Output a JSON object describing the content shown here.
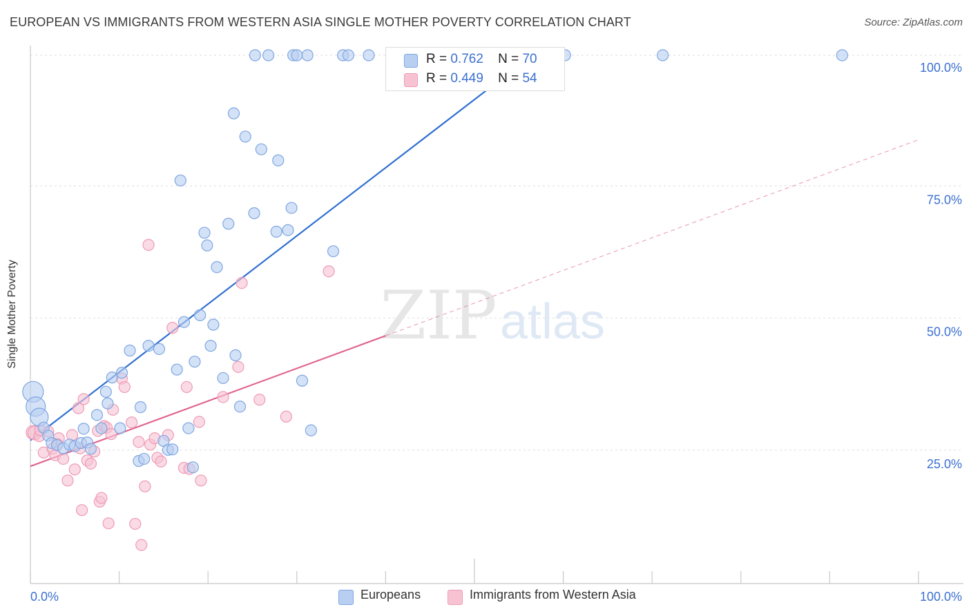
{
  "header": {
    "title": "EUROPEAN VS IMMIGRANTS FROM WESTERN ASIA SINGLE MOTHER POVERTY CORRELATION CHART",
    "source": "Source: ZipAtlas.com"
  },
  "watermark": {
    "zip": "ZIP",
    "atlas": "atlas"
  },
  "legend": {
    "rows": [
      {
        "r_label": "R =",
        "r_value": "0.762",
        "n_label": "N =",
        "n_value": "70"
      },
      {
        "r_label": "R =",
        "r_value": "0.449",
        "n_label": "N =",
        "n_value": "54"
      }
    ]
  },
  "bottom_legend": {
    "items": [
      "Europeans",
      "Immigrants from Western Asia"
    ]
  },
  "colors": {
    "europeans_fill": "#b8cff2",
    "europeans_stroke": "#7ea6e0",
    "europeans_line": "#2f6fd0",
    "immigrants_fill": "#f7c3d3",
    "immigrants_stroke": "#ee9ab4",
    "immigrants_line": "#e06690",
    "axis_text": "#3b70d0",
    "grid": "#dddddd"
  },
  "chart_data": {
    "type": "scatter",
    "title": "EUROPEAN VS IMMIGRANTS FROM WESTERN ASIA SINGLE MOTHER POVERTY CORRELATION CHART",
    "xlabel": "",
    "ylabel": "Single Mother Poverty",
    "xlim": [
      0,
      100
    ],
    "ylim": [
      0,
      100
    ],
    "x_tick_labels": [
      "0.0%",
      "100.0%"
    ],
    "y_ticks": [
      25,
      50,
      75,
      100
    ],
    "y_tick_labels": [
      "25.0%",
      "50.0%",
      "75.0%",
      "100.0%"
    ],
    "grid": true,
    "legend_position": "top-center",
    "series": [
      {
        "name": "Europeans",
        "r": 0.762,
        "n": 70,
        "trend": {
          "x": [
            0,
            56.5
          ],
          "y": [
            27.1,
            100
          ]
        },
        "points": [
          [
            0.3,
            36.3
          ],
          [
            0.6,
            33.5
          ],
          [
            1.0,
            31.5
          ],
          [
            1.5,
            29.5
          ],
          [
            2.0,
            28.0
          ],
          [
            2.4,
            26.6
          ],
          [
            3.0,
            26.2
          ],
          [
            3.7,
            25.6
          ],
          [
            4.4,
            26.3
          ],
          [
            5.0,
            26.0
          ],
          [
            5.7,
            26.6
          ],
          [
            6.0,
            29.3
          ],
          [
            6.4,
            26.7
          ],
          [
            6.8,
            25.5
          ],
          [
            7.5,
            31.9
          ],
          [
            8.0,
            29.4
          ],
          [
            8.5,
            36.3
          ],
          [
            8.7,
            34.1
          ],
          [
            9.2,
            39.0
          ],
          [
            10.1,
            29.4
          ],
          [
            10.3,
            39.9
          ],
          [
            11.2,
            44.1
          ],
          [
            12.2,
            23.2
          ],
          [
            12.4,
            33.4
          ],
          [
            12.8,
            23.6
          ],
          [
            13.3,
            45.0
          ],
          [
            14.5,
            44.4
          ],
          [
            15.0,
            27.0
          ],
          [
            15.5,
            25.3
          ],
          [
            16.0,
            25.4
          ],
          [
            16.5,
            40.5
          ],
          [
            16.9,
            76.3
          ],
          [
            17.3,
            49.5
          ],
          [
            17.8,
            29.4
          ],
          [
            18.3,
            22.0
          ],
          [
            18.5,
            42.0
          ],
          [
            19.1,
            50.8
          ],
          [
            19.6,
            66.4
          ],
          [
            19.9,
            64.0
          ],
          [
            20.3,
            45.0
          ],
          [
            20.6,
            49.0
          ],
          [
            21.0,
            59.9
          ],
          [
            21.7,
            38.9
          ],
          [
            22.3,
            68.1
          ],
          [
            22.9,
            89.0
          ],
          [
            23.1,
            43.2
          ],
          [
            23.6,
            33.5
          ],
          [
            24.2,
            84.6
          ],
          [
            25.2,
            70.1
          ],
          [
            25.3,
            100
          ],
          [
            26.0,
            82.2
          ],
          [
            26.8,
            100
          ],
          [
            27.7,
            66.6
          ],
          [
            27.9,
            80.1
          ],
          [
            29.0,
            66.9
          ],
          [
            29.4,
            71.1
          ],
          [
            29.6,
            100
          ],
          [
            30.0,
            100
          ],
          [
            30.6,
            38.4
          ],
          [
            31.2,
            100
          ],
          [
            31.6,
            29.0
          ],
          [
            34.1,
            62.9
          ],
          [
            35.2,
            100
          ],
          [
            35.8,
            100
          ],
          [
            38.1,
            100
          ],
          [
            42.1,
            100
          ],
          [
            43.2,
            100
          ],
          [
            60.2,
            100
          ],
          [
            71.2,
            100
          ],
          [
            91.4,
            100
          ]
        ]
      },
      {
        "name": "Immigrants from Western Asia",
        "r": 0.449,
        "n": 54,
        "trend": {
          "x": [
            0,
            40
          ],
          "y": [
            22.2,
            46.9
          ]
        },
        "trend_extension": {
          "x": [
            40,
            100
          ],
          "y": [
            46.9,
            84.0
          ]
        },
        "points": [
          [
            0.3,
            28.6
          ],
          [
            0.5,
            28.5
          ],
          [
            1.0,
            27.9
          ],
          [
            1.5,
            24.8
          ],
          [
            2.0,
            28.8
          ],
          [
            2.5,
            25.5
          ],
          [
            2.8,
            24.3
          ],
          [
            3.2,
            27.5
          ],
          [
            3.7,
            23.6
          ],
          [
            4.2,
            19.5
          ],
          [
            4.7,
            28.1
          ],
          [
            5.0,
            21.6
          ],
          [
            5.4,
            33.2
          ],
          [
            5.6,
            25.6
          ],
          [
            5.8,
            13.9
          ],
          [
            6.0,
            34.9
          ],
          [
            6.4,
            23.3
          ],
          [
            6.8,
            22.7
          ],
          [
            7.2,
            25.0
          ],
          [
            7.6,
            28.9
          ],
          [
            7.8,
            15.5
          ],
          [
            8.0,
            16.2
          ],
          [
            8.3,
            29.8
          ],
          [
            8.6,
            29.5
          ],
          [
            8.8,
            11.4
          ],
          [
            9.1,
            28.3
          ],
          [
            9.3,
            32.9
          ],
          [
            10.3,
            38.8
          ],
          [
            10.6,
            37.2
          ],
          [
            11.4,
            30.5
          ],
          [
            11.8,
            11.3
          ],
          [
            12.2,
            26.8
          ],
          [
            12.5,
            7.3
          ],
          [
            12.9,
            18.4
          ],
          [
            13.3,
            64.1
          ],
          [
            13.5,
            26.3
          ],
          [
            14.0,
            27.5
          ],
          [
            14.3,
            23.8
          ],
          [
            14.7,
            23.1
          ],
          [
            15.5,
            28.1
          ],
          [
            16.0,
            48.4
          ],
          [
            17.3,
            21.9
          ],
          [
            17.6,
            37.2
          ],
          [
            17.9,
            21.7
          ],
          [
            19.0,
            30.6
          ],
          [
            19.2,
            19.5
          ],
          [
            21.7,
            35.3
          ],
          [
            23.4,
            41.0
          ],
          [
            23.8,
            56.9
          ],
          [
            25.8,
            34.8
          ],
          [
            28.8,
            31.6
          ],
          [
            33.6,
            59.1
          ],
          [
            1.1,
            29.0
          ],
          [
            3.0,
            26.4
          ]
        ]
      }
    ]
  }
}
